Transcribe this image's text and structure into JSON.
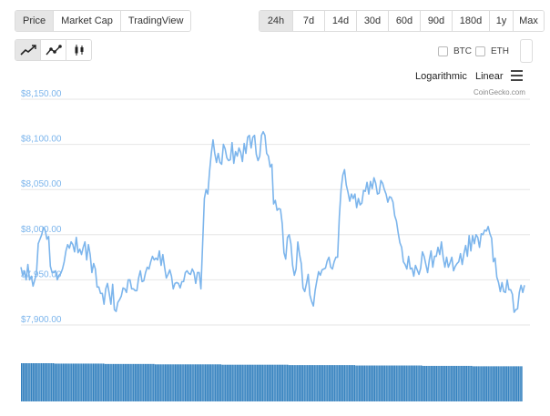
{
  "tabs": [
    {
      "label": "Price",
      "active": true
    },
    {
      "label": "Market Cap",
      "active": false
    },
    {
      "label": "TradingView",
      "active": false
    }
  ],
  "ranges": [
    {
      "label": "24h",
      "active": true
    },
    {
      "label": "7d",
      "active": false
    },
    {
      "label": "14d",
      "active": false
    },
    {
      "label": "30d",
      "active": false
    },
    {
      "label": "60d",
      "active": false
    },
    {
      "label": "90d",
      "active": false
    },
    {
      "label": "180d",
      "active": false
    },
    {
      "label": "1y",
      "active": false
    },
    {
      "label": "Max",
      "active": false
    }
  ],
  "chart_types": [
    {
      "icon": "line-chart-icon",
      "active": true
    },
    {
      "icon": "line-markers-chart-icon",
      "active": false
    },
    {
      "icon": "candlestick-chart-icon",
      "active": false
    }
  ],
  "compare": {
    "btc_label": "BTC",
    "eth_label": "ETH",
    "btc_checked": false,
    "eth_checked": false
  },
  "scale": {
    "log_label": "Logarithmic",
    "linear_label": "Linear"
  },
  "menu_icon": "hamburger-menu-icon",
  "credit": "CoinGecko.com",
  "colors": {
    "line": "#7cb5ec",
    "volume": "#2f7ebd",
    "axis_label": "#7cb5ec",
    "grid": "#e6e6e6"
  },
  "chart_data": {
    "type": "line",
    "y_ticks": [
      {
        "value": 8150,
        "label": "$8,150.00"
      },
      {
        "value": 8100,
        "label": "$8,100.00"
      },
      {
        "value": 8050,
        "label": "$8,050.00"
      },
      {
        "value": 8000,
        "label": "$8,000.00"
      },
      {
        "value": 7950,
        "label": "$7,950.00"
      },
      {
        "value": 7900,
        "label": "$7,900.00"
      }
    ],
    "ylim": [
      7890,
      8165
    ],
    "grid": true,
    "series": [
      {
        "values": [
          7964,
          7955,
          7960,
          7950,
          7967,
          7950,
          7954,
          7943,
          7950,
          7958,
          7990,
          7995,
          8000,
          8008,
          8005,
          7995,
          7998,
          7965,
          7958,
          7958,
          7960,
          7950,
          7955,
          7957,
          7962,
          7970,
          7982,
          7989,
          7985,
          7992,
          7989,
          7981,
          7997,
          7980,
          7984,
          7978,
          7986,
          7992,
          7972,
          7989,
          7978,
          7958,
          7968,
          7962,
          7942,
          7942,
          7935,
          7935,
          7923,
          7940,
          7946,
          7935,
          7923,
          7945,
          7917,
          7915,
          7925,
          7928,
          7932,
          7941,
          7940,
          7936,
          7950,
          7950,
          7940,
          7940,
          7938,
          7938,
          7952,
          7960,
          7948,
          7949,
          7958,
          7964,
          7962,
          7970,
          7976,
          7972,
          7974,
          7972,
          7982,
          7966,
          7978,
          7964,
          7952,
          7956,
          7961,
          7954,
          7940,
          7946,
          7947,
          7946,
          7941,
          7948,
          7948,
          7958,
          7960,
          7957,
          7956,
          7962,
          7958,
          7946,
          7958,
          7958,
          7940,
          7990,
          8040,
          8050,
          8045,
          8070,
          8090,
          8105,
          8090,
          8080,
          8090,
          8080,
          8078,
          8100,
          8095,
          8085,
          8082,
          8083,
          8102,
          8079,
          8092,
          8087,
          8096,
          8091,
          8081,
          8101,
          8090,
          8108,
          8110,
          8096,
          8108,
          8110,
          8089,
          8082,
          8087,
          8110,
          8114,
          8110,
          8090,
          8087,
          8075,
          8078,
          8034,
          8038,
          8027,
          8029,
          8028,
          8012,
          7980,
          7973,
          7997,
          8000,
          7990,
          7966,
          7955,
          7962,
          7992,
          7978,
          7968,
          7941,
          7937,
          7946,
          7956,
          7933,
          7926,
          7921,
          7938,
          7949,
          7959,
          7955,
          7961,
          7962,
          7963,
          7971,
          7975,
          7964,
          7962,
          7970,
          7975,
          7975,
          8020,
          8050,
          8066,
          8072,
          8055,
          8047,
          8037,
          8045,
          8040,
          8045,
          8030,
          8040,
          8033,
          8035,
          8049,
          8048,
          8058,
          8045,
          8059,
          8051,
          8063,
          8057,
          8045,
          8046,
          8060,
          8057,
          8050,
          8045,
          8036,
          8042,
          8041,
          8036,
          8021,
          8015,
          8002,
          7991,
          7986,
          7970,
          7967,
          7962,
          7976,
          7962,
          7963,
          7954,
          7966,
          7961,
          7956,
          7963,
          7981,
          7976,
          7967,
          7958,
          7972,
          7982,
          7964,
          7976,
          7976,
          7986,
          7978,
          7992,
          7975,
          7964,
          7975,
          7964,
          7969,
          7975,
          7960,
          7965,
          7968,
          7970,
          7979,
          7967,
          7979,
          7988,
          7976,
          7999,
          7982,
          7999,
          7990,
          8000,
          7997,
          7986,
          8001,
          8000,
          8005,
          8004,
          8009,
          8001,
          7996,
          7970,
          7974,
          7953,
          7947,
          7937,
          7947,
          7937,
          7936,
          7950,
          7939,
          7939,
          7934,
          7914,
          7917,
          7918,
          7936,
          7944,
          7936,
          7944
        ]
      }
    ],
    "volume": {
      "bar_count": 300,
      "profile_note_values": "relative heights only; no axis printed",
      "values": [
        1.0,
        1.0,
        1.0,
        1.0,
        1.0,
        1.0,
        1.0,
        1.0,
        1.0,
        1.0,
        1.0,
        1.0,
        1.0,
        1.0,
        1.0,
        1.0,
        1.0,
        1.0,
        1.0,
        1.0,
        0.99,
        0.99,
        0.99,
        0.99,
        0.99,
        0.99,
        0.99,
        0.99,
        0.99,
        0.99,
        0.99,
        0.99,
        0.99,
        0.99,
        0.99,
        0.99,
        0.99,
        0.99,
        0.99,
        0.99,
        0.99,
        0.99,
        0.99,
        0.99,
        0.99,
        0.99,
        0.99,
        0.99,
        0.99,
        0.99,
        0.98,
        0.98,
        0.98,
        0.98,
        0.98,
        0.98,
        0.98,
        0.98,
        0.98,
        0.98,
        0.98,
        0.98,
        0.98,
        0.98,
        0.98,
        0.98,
        0.98,
        0.98,
        0.98,
        0.98,
        0.98,
        0.98,
        0.98,
        0.98,
        0.98,
        0.98,
        0.98,
        0.98,
        0.98,
        0.98,
        0.97,
        0.97,
        0.97,
        0.97,
        0.97,
        0.97,
        0.97,
        0.97,
        0.97,
        0.97,
        0.97,
        0.97,
        0.97,
        0.97,
        0.97,
        0.97,
        0.97,
        0.97,
        0.97,
        0.97,
        0.97,
        0.97,
        0.97,
        0.97,
        0.97,
        0.97,
        0.97,
        0.97,
        0.97,
        0.97,
        0.97,
        0.97,
        0.97,
        0.97,
        0.97,
        0.97,
        0.97,
        0.97,
        0.97,
        0.97,
        0.96,
        0.96,
        0.96,
        0.96,
        0.96,
        0.96,
        0.96,
        0.96,
        0.96,
        0.96,
        0.96,
        0.96,
        0.96,
        0.96,
        0.96,
        0.96,
        0.96,
        0.96,
        0.96,
        0.96,
        0.96,
        0.96,
        0.96,
        0.96,
        0.96,
        0.96,
        0.96,
        0.96,
        0.96,
        0.96,
        0.96,
        0.96,
        0.96,
        0.96,
        0.96,
        0.96,
        0.96,
        0.96,
        0.96,
        0.96,
        0.95,
        0.95,
        0.95,
        0.95,
        0.95,
        0.95,
        0.95,
        0.95,
        0.95,
        0.95,
        0.95,
        0.95,
        0.95,
        0.95,
        0.95,
        0.95,
        0.95,
        0.95,
        0.95,
        0.95,
        0.95,
        0.95,
        0.95,
        0.95,
        0.95,
        0.95,
        0.95,
        0.95,
        0.95,
        0.95,
        0.95,
        0.95,
        0.95,
        0.95,
        0.95,
        0.95,
        0.95,
        0.95,
        0.95,
        0.95,
        0.94,
        0.94,
        0.94,
        0.94,
        0.94,
        0.94,
        0.94,
        0.94,
        0.94,
        0.94,
        0.94,
        0.94,
        0.94,
        0.94,
        0.94,
        0.94,
        0.94,
        0.94,
        0.94,
        0.94,
        0.94,
        0.94,
        0.94,
        0.94,
        0.94,
        0.94,
        0.94,
        0.94,
        0.94,
        0.94,
        0.94,
        0.94,
        0.94,
        0.94,
        0.94,
        0.94,
        0.94,
        0.94,
        0.94,
        0.94,
        0.93,
        0.93,
        0.93,
        0.93,
        0.93,
        0.93,
        0.93,
        0.93,
        0.93,
        0.93,
        0.93,
        0.93,
        0.93,
        0.93,
        0.93,
        0.93,
        0.93,
        0.93,
        0.93,
        0.93,
        0.93,
        0.93,
        0.93,
        0.93,
        0.93,
        0.93,
        0.93,
        0.93,
        0.93,
        0.93,
        0.92,
        0.92,
        0.92,
        0.92,
        0.92,
        0.92,
        0.92,
        0.92,
        0.92,
        0.92,
        0.92,
        0.92,
        0.92,
        0.92,
        0.92,
        0.92,
        0.92,
        0.92,
        0.92,
        0.92,
        0.92,
        0.92,
        0.92,
        0.92,
        0.92,
        0.92,
        0.92,
        0.92,
        0.92,
        0.92
      ]
    }
  }
}
